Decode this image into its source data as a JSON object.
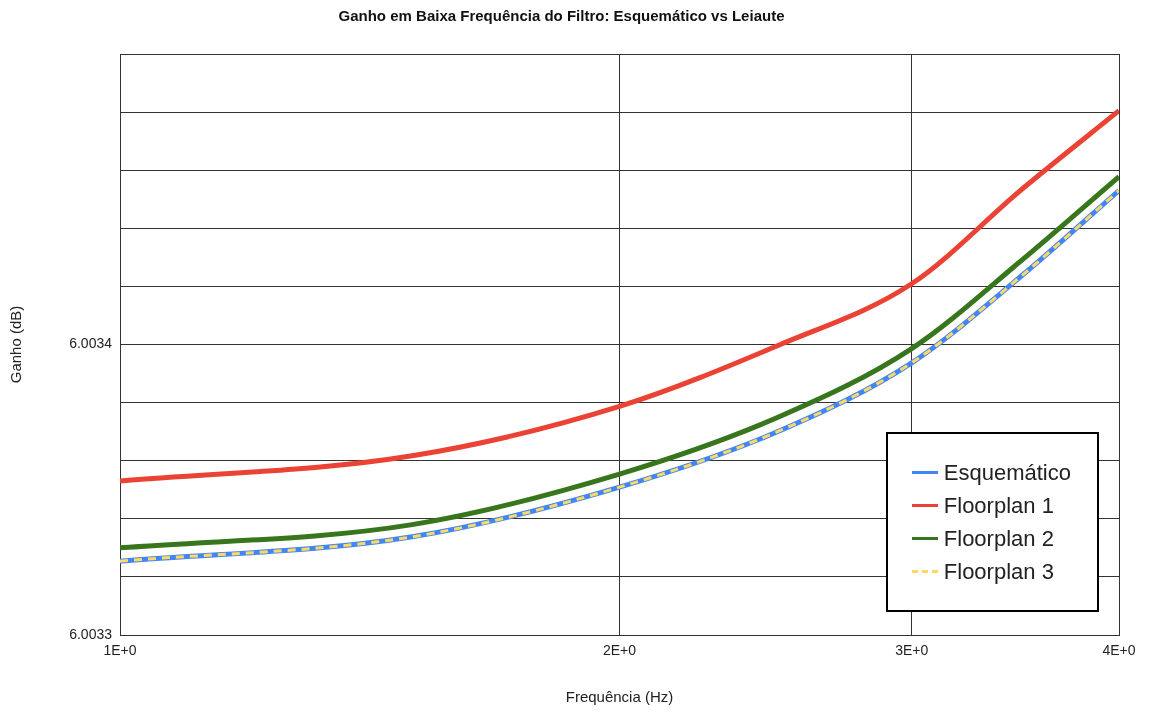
{
  "chart_data": {
    "type": "line",
    "title": "Ganho em Baixa Frequência do Filtro: Esquemático vs Leiaute",
    "xlabel": "Frequência (Hz)",
    "ylabel": "Ganho (dB)",
    "log": "x",
    "x": [
      1,
      1.5,
      2,
      2.5,
      3,
      3.5,
      4
    ],
    "series": [
      {
        "name": "Esquemático",
        "color": "#4285f4",
        "values": [
          6.0033254,
          6.0033338,
          6.0033509,
          6.0033704,
          6.0033937,
          6.003424,
          6.003453
        ]
      },
      {
        "name": "Floorplan 1",
        "color": "#ea4335",
        "values": [
          6.003353,
          6.0033617,
          6.0033787,
          6.0034,
          6.0034209,
          6.0034537,
          6.0034805
        ]
      },
      {
        "name": "Floorplan 2",
        "color": "#38761d",
        "values": [
          6.00333,
          6.003338,
          6.0033554,
          6.0033753,
          6.0033986,
          6.0034293,
          6.0034578
        ]
      },
      {
        "name": "Floorplan 3",
        "color": "#ffd966",
        "line_style": "dashed",
        "values": [
          6.0033254,
          6.0033338,
          6.0033509,
          6.0033704,
          6.0033937,
          6.003424,
          6.003453
        ]
      }
    ],
    "xlim": [
      1,
      4
    ],
    "xticks": [
      {
        "value": 1,
        "label": "1E+0"
      },
      {
        "value": 2,
        "label": "2E+0"
      },
      {
        "value": 3,
        "label": "3E+0"
      },
      {
        "value": 4,
        "label": "4E+0"
      }
    ],
    "ylim": [
      6.0033,
      6.0035
    ],
    "yticks": [
      6.0033,
      {
        "value": 6.00332,
        "label": null
      },
      {
        "value": 6.00334,
        "label": null
      },
      {
        "value": 6.00336,
        "label": null
      },
      {
        "value": 6.00338,
        "label": null
      },
      6.0034,
      {
        "value": 6.00342,
        "label": null
      },
      {
        "value": 6.00344,
        "label": null
      },
      {
        "value": 6.00346,
        "label": null
      },
      {
        "value": 6.00348,
        "label": null
      },
      {
        "value": 6.0035,
        "label": null
      }
    ],
    "grid": true,
    "legend": "bottom right",
    "marker": "none",
    "line_style": "solid"
  }
}
